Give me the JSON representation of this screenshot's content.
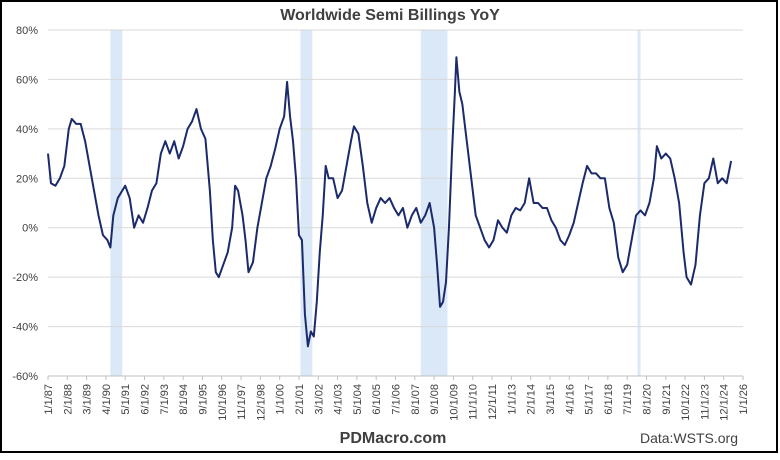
{
  "chart_data": {
    "type": "line",
    "title": "Worldwide Semi Billings YoY",
    "website": "PDMacro.com",
    "source": "Data:WSTS.org",
    "x": [
      "1/1/87",
      "3/1/87",
      "6/1/87",
      "9/1/87",
      "12/1/87",
      "3/1/88",
      "5/1/88",
      "8/1/88",
      "11/1/88",
      "2/1/89",
      "5/1/89",
      "8/1/89",
      "11/1/89",
      "2/1/90",
      "5/1/90",
      "7/1/90",
      "9/1/90",
      "12/1/90",
      "3/1/91",
      "5/1/91",
      "8/1/91",
      "11/1/91",
      "2/1/92",
      "5/1/92",
      "8/1/92",
      "11/1/92",
      "2/1/93",
      "5/1/93",
      "8/1/93",
      "11/1/93",
      "2/1/94",
      "5/1/94",
      "8/1/94",
      "11/1/94",
      "2/1/95",
      "5/1/95",
      "8/1/95",
      "11/1/95",
      "2/1/96",
      "4/1/96",
      "6/1/96",
      "8/1/96",
      "11/1/96",
      "2/1/97",
      "5/1/97",
      "7/1/97",
      "9/1/97",
      "12/1/97",
      "2/1/98",
      "4/1/98",
      "7/1/98",
      "10/1/98",
      "1/1/99",
      "4/1/99",
      "7/1/99",
      "10/1/99",
      "1/1/00",
      "4/1/00",
      "6/1/00",
      "8/1/00",
      "10/1/00",
      "12/1/00",
      "2/1/01",
      "4/1/01",
      "6/1/01",
      "8/1/01",
      "10/1/01",
      "12/1/01",
      "2/1/02",
      "4/1/02",
      "6/1/02",
      "8/1/02",
      "10/1/02",
      "1/1/03",
      "4/1/03",
      "7/1/03",
      "10/1/03",
      "1/1/04",
      "3/1/04",
      "6/1/04",
      "9/1/04",
      "12/1/04",
      "3/1/05",
      "6/1/05",
      "9/1/05",
      "12/1/05",
      "3/1/06",
      "6/1/06",
      "9/1/06",
      "12/1/06",
      "3/1/07",
      "6/1/07",
      "9/1/07",
      "12/1/07",
      "3/1/08",
      "6/1/08",
      "9/1/08",
      "11/1/08",
      "1/1/09",
      "3/1/09",
      "5/1/09",
      "7/1/09",
      "9/1/09",
      "11/1/09",
      "12/1/09",
      "2/1/10",
      "4/1/10",
      "7/1/10",
      "10/1/10",
      "1/1/11",
      "4/1/11",
      "7/1/11",
      "10/1/11",
      "1/1/12",
      "4/1/12",
      "7/1/12",
      "10/1/12",
      "1/1/13",
      "4/1/13",
      "7/1/13",
      "10/1/13",
      "1/1/14",
      "4/1/14",
      "7/1/14",
      "10/1/14",
      "1/1/15",
      "4/1/15",
      "7/1/15",
      "10/1/15",
      "1/1/16",
      "4/1/16",
      "7/1/16",
      "10/1/16",
      "1/1/17",
      "4/1/17",
      "7/1/17",
      "10/1/17",
      "1/1/18",
      "4/1/18",
      "7/1/18",
      "10/1/18",
      "1/1/19",
      "4/1/19",
      "7/1/19",
      "10/1/19",
      "1/1/20",
      "4/1/20",
      "7/1/20",
      "10/1/20",
      "1/1/21",
      "3/1/21",
      "6/1/21",
      "9/1/21",
      "12/1/21",
      "3/1/22",
      "6/1/22",
      "9/1/22",
      "11/1/22",
      "2/1/23",
      "5/1/23",
      "8/1/23",
      "11/1/23",
      "2/1/24",
      "5/1/24",
      "8/1/24",
      "11/1/24",
      "2/1/25",
      "5/1/25"
    ],
    "series": [
      {
        "color": "#1b2a6b",
        "values": [
          30,
          18,
          17,
          20,
          25,
          40,
          44,
          42,
          42,
          35,
          25,
          15,
          5,
          -3,
          -5,
          -8,
          5,
          12,
          15,
          17,
          12,
          0,
          5,
          2,
          8,
          15,
          18,
          30,
          35,
          30,
          35,
          28,
          33,
          40,
          43,
          48,
          40,
          36,
          15,
          -5,
          -18,
          -20,
          -15,
          -10,
          0,
          17,
          15,
          5,
          -5,
          -18,
          -14,
          0,
          10,
          20,
          25,
          32,
          40,
          45,
          59,
          45,
          35,
          20,
          -3,
          -5,
          -35,
          -48,
          -42,
          -44,
          -30,
          -10,
          5,
          25,
          20,
          20,
          12,
          15,
          25,
          35,
          41,
          38,
          25,
          10,
          2,
          8,
          12,
          10,
          12,
          8,
          5,
          8,
          0,
          5,
          8,
          2,
          5,
          10,
          0,
          -15,
          -32,
          -30,
          -22,
          0,
          30,
          55,
          69,
          55,
          50,
          35,
          20,
          5,
          0,
          -5,
          -8,
          -5,
          3,
          0,
          -2,
          5,
          8,
          7,
          10,
          20,
          10,
          10,
          8,
          8,
          3,
          0,
          -5,
          -7,
          -3,
          2,
          10,
          18,
          25,
          22,
          22,
          20,
          20,
          8,
          2,
          -12,
          -18,
          -15,
          -5,
          5,
          7,
          5,
          10,
          20,
          33,
          28,
          30,
          28,
          20,
          10,
          -10,
          -20,
          -23,
          -15,
          5,
          18,
          20,
          28,
          18,
          20,
          18,
          27
        ]
      }
    ],
    "recessions": [
      {
        "start": "7/1/90",
        "end": "3/1/91"
      },
      {
        "start": "3/1/01",
        "end": "11/1/01"
      },
      {
        "start": "12/1/07",
        "end": "6/1/09"
      },
      {
        "start": "2/1/20",
        "end": "4/1/20"
      }
    ],
    "recession_color": "#dae8f7",
    "xlim": [
      "1/1/87",
      "1/1/26"
    ],
    "xticks": [
      "1/1/87",
      "2/1/88",
      "3/1/89",
      "4/1/90",
      "5/1/91",
      "6/1/92",
      "7/1/93",
      "8/1/94",
      "9/1/95",
      "10/1/96",
      "11/1/97",
      "12/1/98",
      "1/1/00",
      "2/1/01",
      "3/1/02",
      "4/1/03",
      "5/1/04",
      "6/1/05",
      "7/1/06",
      "8/1/07",
      "9/1/08",
      "10/1/09",
      "11/1/10",
      "12/1/11",
      "1/1/13",
      "2/1/14",
      "3/1/15",
      "4/1/16",
      "5/1/17",
      "6/1/18",
      "7/1/19",
      "8/1/20",
      "9/1/21",
      "10/1/22",
      "11/1/23",
      "12/1/24",
      "1/1/26"
    ],
    "ylim": [
      -60,
      80
    ],
    "yticks": [
      {
        "value": -60,
        "label": "-60%"
      },
      {
        "value": -40,
        "label": "-40%"
      },
      {
        "value": -20,
        "label": "-20%"
      },
      {
        "value": 0,
        "label": "0%"
      },
      {
        "value": 20,
        "label": "20%"
      },
      {
        "value": 40,
        "label": "40%"
      },
      {
        "value": 60,
        "label": "60%"
      },
      {
        "value": 80,
        "label": "80%"
      }
    ],
    "grid": true
  }
}
